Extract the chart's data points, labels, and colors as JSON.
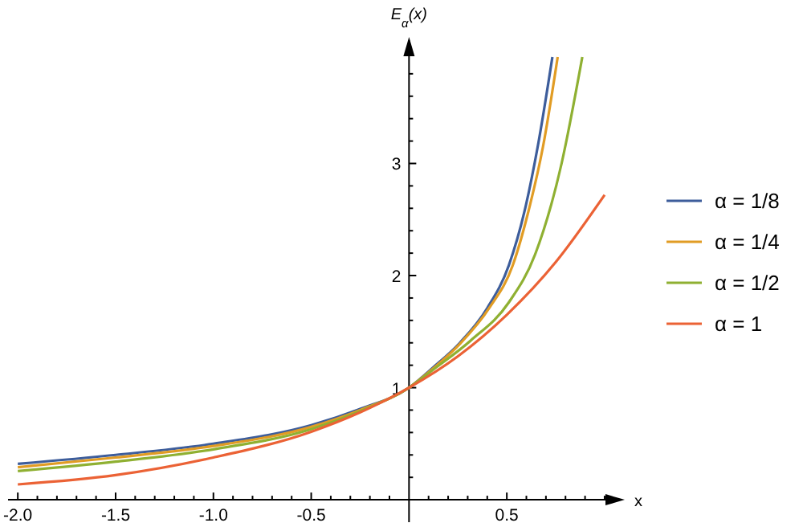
{
  "chart_data": {
    "type": "line",
    "ylabel": "E$_{α}$(x)",
    "xlabel": "x",
    "xlim": [
      -2.05,
      1.07
    ],
    "ylim": [
      -0.2,
      4.1
    ],
    "xticks": [
      {
        "value": -2,
        "label": "-2.0"
      },
      {
        "value": -1.9,
        "label": null
      },
      {
        "value": -1.8,
        "label": null
      },
      {
        "value": -1.7,
        "label": null
      },
      {
        "value": -1.6,
        "label": null
      },
      {
        "value": -1.5,
        "label": "-1.5"
      },
      {
        "value": -1.4,
        "label": null
      },
      {
        "value": -1.3,
        "label": null
      },
      {
        "value": -1.2,
        "label": null
      },
      {
        "value": -1.1,
        "label": null
      },
      {
        "value": -1,
        "label": "-1.0"
      },
      {
        "value": -0.9,
        "label": null
      },
      {
        "value": -0.8,
        "label": null
      },
      {
        "value": -0.7,
        "label": null
      },
      {
        "value": -0.6,
        "label": null
      },
      {
        "value": -0.5,
        "label": "-0.5"
      },
      {
        "value": -0.4,
        "label": null
      },
      {
        "value": -0.3,
        "label": null
      },
      {
        "value": -0.2,
        "label": null
      },
      {
        "value": -0.1,
        "label": null
      },
      {
        "value": 0.1,
        "label": null
      },
      {
        "value": 0.2,
        "label": null
      },
      {
        "value": 0.3,
        "label": null
      },
      {
        "value": 0.4,
        "label": null
      },
      {
        "value": 0.5,
        "label": "0.5"
      },
      {
        "value": 0.6,
        "label": null
      },
      {
        "value": 0.7,
        "label": null
      },
      {
        "value": 0.8,
        "label": null
      },
      {
        "value": 0.9,
        "label": null
      },
      {
        "value": 1,
        "label": null
      }
    ],
    "yticks": [
      {
        "value": 0.2,
        "label": null
      },
      {
        "value": 0.4,
        "label": null
      },
      {
        "value": 0.6,
        "label": null
      },
      {
        "value": 0.8,
        "label": null
      },
      1,
      {
        "value": 1.2,
        "label": null
      },
      {
        "value": 1.4,
        "label": null
      },
      {
        "value": 1.6,
        "label": null
      },
      {
        "value": 1.8,
        "label": null
      },
      2,
      {
        "value": 2.2,
        "label": null
      },
      {
        "value": 2.4,
        "label": null
      },
      {
        "value": 2.6,
        "label": null
      },
      {
        "value": 2.8,
        "label": null
      },
      3,
      {
        "value": 3.2,
        "label": null
      },
      {
        "value": 3.4,
        "label": null
      },
      {
        "value": 3.6,
        "label": null
      },
      {
        "value": 3.8,
        "label": null
      }
    ],
    "legend": "right",
    "grid": false,
    "marker": "none",
    "line_style": "solid",
    "series": [
      {
        "name": "α = 1/8",
        "color": "#3d5d9b",
        "x": [
          -2,
          -1.5,
          -1,
          -0.5,
          -0.25,
          0,
          0.123,
          0.26,
          0.4,
          0.51,
          0.59,
          0.658,
          0.733
        ],
        "values": [
          0.32,
          0.4,
          0.5,
          0.665,
          0.81,
          1,
          1.18,
          1.4,
          1.71,
          2.09,
          2.57,
          3.15,
          3.95
        ]
      },
      {
        "name": "α = 1/4",
        "color": "#e19c24",
        "x": [
          -2,
          -1.5,
          -1,
          -0.5,
          -0.25,
          0,
          0.123,
          0.26,
          0.41,
          0.53,
          0.61,
          0.685,
          0.76
        ],
        "values": [
          0.29,
          0.377,
          0.48,
          0.65,
          0.8,
          1,
          1.17,
          1.39,
          1.71,
          2.09,
          2.57,
          3.15,
          3.95
        ]
      },
      {
        "name": "α = 1/2",
        "color": "#8fb032",
        "x": [
          -2,
          -1.5,
          -1,
          -0.5,
          -0.25,
          0,
          0.123,
          0.315,
          0.51,
          0.645,
          0.78,
          0.886
        ],
        "values": [
          0.256,
          0.34,
          0.45,
          0.63,
          0.79,
          1,
          1.16,
          1.42,
          1.76,
          2.19,
          3,
          3.95
        ]
      },
      {
        "name": "α = 1",
        "color": "#eb6235",
        "x": [
          -2,
          -1.5,
          -1,
          -0.5,
          -0.25,
          0,
          0.25,
          0.5,
          0.75,
          1
        ],
        "values": [
          0.137,
          0.22,
          0.377,
          0.607,
          0.78,
          1,
          1.28,
          1.65,
          2.12,
          2.72
        ]
      }
    ]
  }
}
